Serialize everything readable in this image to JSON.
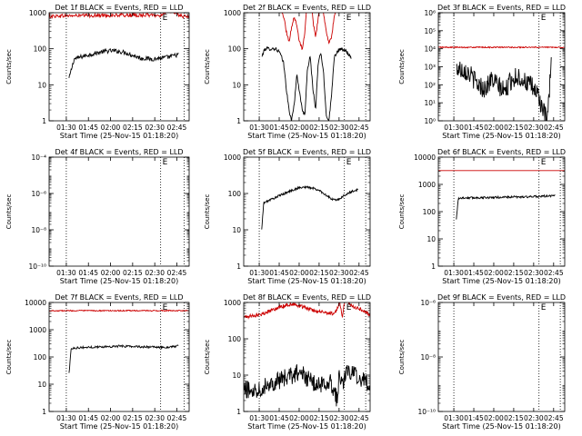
{
  "figure": {
    "x_tick_labels": [
      "01:30",
      "01:45",
      "02:00",
      "02:15",
      "02:30",
      "02:45"
    ],
    "x_axis_label": "Start Time (25-Nov-15 01:18:20)",
    "y_axis_label": "Counts/sec",
    "colors": {
      "events": "#000000",
      "lld": "#cc0000",
      "axes": "#000000",
      "background": "#ffffff"
    }
  },
  "chart_data": [
    {
      "type": "line",
      "title": "Det 1f BLACK = Events, RED = LLD",
      "xlabel": "Start Time (25-Nov-15 01:18:20)",
      "ylabel": "Counts/sec",
      "yscale": "log",
      "ylim": [
        1,
        1000
      ],
      "y_tick_labels": [
        "1",
        "10",
        "100",
        "1000"
      ],
      "x_range_minutes_after_01:18:20": [
        0,
        95
      ],
      "marker_times": [
        "01:30",
        "02:34",
        "02:50"
      ],
      "series": [
        {
          "name": "Events",
          "color": "#000000",
          "x": [
            13.5,
            17,
            22,
            27,
            32,
            37,
            42,
            47,
            52,
            57,
            62,
            67,
            71,
            76,
            80,
            84,
            88
          ],
          "y": [
            15,
            52,
            60,
            68,
            76,
            84,
            88,
            85,
            78,
            65,
            55,
            53,
            52,
            55,
            58,
            63,
            70
          ],
          "noise": 0.06
        },
        {
          "name": "LLD",
          "color": "#cc0000",
          "x": [
            0,
            10,
            20,
            30,
            40,
            50,
            60,
            70,
            75,
            80,
            85,
            90,
            95
          ],
          "y": [
            800,
            820,
            830,
            840,
            840,
            850,
            850,
            860,
            820,
            1150,
            980,
            800,
            760
          ],
          "noise": 0.05
        }
      ]
    },
    {
      "type": "line",
      "title": "Det 2f BLACK = Events, RED = LLD",
      "xlabel": "Start Time (25-Nov-15 01:18:20)",
      "ylabel": "Counts/sec",
      "yscale": "log",
      "ylim": [
        1,
        1000
      ],
      "y_tick_labels": [
        "1",
        "10",
        "100",
        "1000"
      ],
      "x_range_minutes_after_01:18:20": [
        0,
        95
      ],
      "marker_times": [
        "01:30",
        "02:34",
        "02:50"
      ],
      "series": [
        {
          "name": "Events",
          "color": "#000000",
          "x": [
            13.5,
            16,
            20,
            24,
            27,
            30,
            32,
            34,
            36,
            38,
            40,
            42,
            44,
            46,
            48,
            50,
            52,
            54,
            56,
            58,
            60,
            62,
            64,
            66,
            68,
            70,
            72,
            75,
            78,
            81
          ],
          "y": [
            60,
            100,
            100,
            100,
            80,
            40,
            8,
            2,
            1,
            3,
            20,
            6,
            2,
            1.5,
            30,
            60,
            8,
            2,
            40,
            80,
            20,
            1.5,
            1,
            5,
            60,
            80,
            100,
            90,
            80,
            50
          ],
          "noise": 0.05
        },
        {
          "name": "LLD",
          "color": "#cc0000",
          "x": [
            0,
            10,
            20,
            25,
            28,
            30,
            32,
            34,
            36,
            38,
            40,
            42,
            44,
            46,
            48,
            50,
            52,
            54,
            56,
            58,
            60,
            62,
            64,
            66,
            68,
            70,
            72,
            75,
            80,
            85,
            90,
            95
          ],
          "y": [
            1300,
            1300,
            1300,
            1300,
            1200,
            800,
            300,
            150,
            400,
            800,
            400,
            150,
            100,
            300,
            3500,
            5000,
            600,
            200,
            700,
            2000,
            900,
            300,
            150,
            200,
            800,
            1200,
            1300,
            1300,
            1300,
            1300,
            1300,
            1300
          ],
          "noise": 0.04
        }
      ]
    },
    {
      "type": "line",
      "title": "Det 3f BLACK = Events, RED = LLD",
      "xlabel": "Start Time (25-Nov-15 01:18:20)",
      "ylabel": "Counts/sec",
      "yscale": "log",
      "ylim": [
        1,
        1000000
      ],
      "y_tick_labels": [
        "10⁰",
        "10¹",
        "10²",
        "10³",
        "10⁴",
        "10⁵",
        "10⁶"
      ],
      "x_range_minutes_after_01:18:20": [
        0,
        95
      ],
      "marker_times": [
        "01:30",
        "02:34",
        "02:50"
      ],
      "series": [
        {
          "name": "Events",
          "color": "#000000",
          "x": [
            13.5,
            20,
            25,
            30,
            35,
            40,
            45,
            50,
            55,
            60,
            65,
            70,
            75,
            78,
            80,
            82,
            85
          ],
          "y": [
            800,
            700,
            300,
            100,
            60,
            200,
            90,
            40,
            200,
            300,
            150,
            80,
            30,
            5,
            2,
            1,
            2000
          ],
          "noise": 0.55
        },
        {
          "name": "LLD",
          "color": "#cc0000",
          "x": [
            0,
            20,
            40,
            60,
            80,
            95
          ],
          "y": [
            12000,
            12000,
            12000,
            12000,
            12000,
            12000
          ],
          "noise": 0.03
        }
      ]
    },
    {
      "type": "line",
      "title": "Det 4f BLACK = Events, RED = LLD",
      "xlabel": "Start Time (25-Nov-15 01:18:20)",
      "ylabel": "Counts/sec",
      "yscale": "log",
      "ylim": [
        1e-10,
        0.0001
      ],
      "y_tick_labels": [
        "10⁻¹⁰",
        "10⁻⁸",
        "10⁻⁶",
        "10⁻⁴"
      ],
      "x_range_minutes_after_01:18:20": [
        0,
        95
      ],
      "marker_times": [
        "01:30",
        "02:34",
        "02:50"
      ],
      "series": []
    },
    {
      "type": "line",
      "title": "Det 5f BLACK = Events, RED = LLD",
      "xlabel": "Start Time (25-Nov-15 01:18:20)",
      "ylabel": "Counts/sec",
      "yscale": "log",
      "ylim": [
        1,
        1000
      ],
      "y_tick_labels": [
        "1",
        "10",
        "100",
        "1000"
      ],
      "x_range_minutes_after_01:18:20": [
        0,
        95
      ],
      "marker_times": [
        "01:30",
        "02:34",
        "02:50"
      ],
      "series": [
        {
          "name": "Events",
          "color": "#000000",
          "x": [
            13.5,
            15,
            18,
            22,
            27,
            32,
            37,
            42,
            47,
            52,
            57,
            62,
            66,
            70,
            74,
            78,
            82,
            86
          ],
          "y": [
            10,
            55,
            62,
            72,
            88,
            105,
            125,
            145,
            150,
            140,
            120,
            90,
            70,
            65,
            80,
            100,
            115,
            130
          ],
          "noise": 0.03
        }
      ]
    },
    {
      "type": "line",
      "title": "Det 6f BLACK = Events, RED = LLD",
      "xlabel": "Start Time (25-Nov-15 01:18:20)",
      "ylabel": "Counts/sec",
      "yscale": "log",
      "ylim": [
        1,
        10000
      ],
      "y_tick_labels": [
        "1",
        "10",
        "100",
        "1000",
        "10000"
      ],
      "x_range_minutes_after_01:18:20": [
        0,
        95
      ],
      "marker_times": [
        "01:30",
        "02:34",
        "02:50"
      ],
      "series": [
        {
          "name": "Events",
          "color": "#000000",
          "x": [
            13.5,
            15,
            20,
            30,
            40,
            50,
            60,
            70,
            75,
            80,
            85,
            88
          ],
          "y": [
            50,
            310,
            320,
            325,
            330,
            340,
            345,
            350,
            360,
            370,
            380,
            390
          ],
          "noise": 0.04
        },
        {
          "name": "LLD",
          "color": "#cc0000",
          "x": [
            0,
            20,
            40,
            60,
            80,
            95
          ],
          "y": [
            3200,
            3200,
            3200,
            3200,
            3200,
            3200
          ],
          "noise": 0.0
        }
      ]
    },
    {
      "type": "line",
      "title": "Det 7f BLACK = Events, RED = LLD",
      "xlabel": "Start Time (25-Nov-15 01:18:20)",
      "ylabel": "Counts/sec",
      "yscale": "log",
      "ylim": [
        1,
        10000
      ],
      "y_tick_labels": [
        "1",
        "10",
        "100",
        "1000",
        "10000"
      ],
      "x_range_minutes_after_01:18:20": [
        0,
        95
      ],
      "marker_times": [
        "01:30",
        "02:34",
        "02:50"
      ],
      "series": [
        {
          "name": "Events",
          "color": "#000000",
          "x": [
            13.5,
            15,
            20,
            30,
            40,
            50,
            60,
            70,
            75,
            80,
            85,
            88
          ],
          "y": [
            25,
            210,
            220,
            230,
            240,
            250,
            240,
            230,
            225,
            230,
            240,
            250
          ],
          "noise": 0.04
        },
        {
          "name": "LLD",
          "color": "#cc0000",
          "x": [
            0,
            20,
            40,
            60,
            80,
            95
          ],
          "y": [
            5000,
            5000,
            5000,
            5000,
            5000,
            5000
          ],
          "noise": 0.02
        }
      ]
    },
    {
      "type": "line",
      "title": "Det 8f BLACK = Events, RED = LLD",
      "xlabel": "Start Time (25-Nov-15 01:18:20)",
      "ylabel": "Counts/sec",
      "yscale": "log",
      "ylim": [
        1,
        1000
      ],
      "y_tick_labels": [
        "1",
        "10",
        "100",
        "1000"
      ],
      "x_range_minutes_after_01:18:20": [
        0,
        95
      ],
      "marker_times": [
        "01:30",
        "02:34",
        "02:50"
      ],
      "series": [
        {
          "name": "Events",
          "color": "#000000",
          "x": [
            0,
            5,
            10,
            15,
            20,
            25,
            30,
            35,
            40,
            45,
            50,
            55,
            60,
            65,
            68,
            70,
            72,
            75,
            78,
            80,
            85,
            90,
            95
          ],
          "y": [
            4,
            4,
            4,
            5,
            6,
            7,
            8,
            9,
            12,
            10,
            7,
            5,
            6,
            7,
            4,
            2,
            12,
            6,
            15,
            12,
            9,
            8,
            5
          ],
          "noise": 0.25
        },
        {
          "name": "LLD",
          "color": "#cc0000",
          "x": [
            0,
            5,
            10,
            15,
            20,
            25,
            30,
            35,
            40,
            45,
            50,
            55,
            60,
            65,
            68,
            70,
            72,
            74,
            76,
            78,
            80,
            85,
            90,
            95
          ],
          "y": [
            400,
            420,
            450,
            500,
            600,
            700,
            800,
            900,
            850,
            750,
            650,
            550,
            550,
            500,
            480,
            600,
            1100,
            400,
            1150,
            1100,
            900,
            700,
            600,
            450
          ],
          "noise": 0.05
        }
      ]
    },
    {
      "type": "line",
      "title": "Det 9f BLACK = Events, RED = LLD",
      "xlabel": "Start Time (25-Nov-15 01:18:20)",
      "ylabel": "Counts/sec",
      "yscale": "log",
      "ylim": [
        1e-10,
        1e-06
      ],
      "y_tick_labels": [
        "10⁻¹⁰",
        "10⁻⁸",
        "10⁻⁶"
      ],
      "x_range_minutes_after_01:18:20": [
        0,
        95
      ],
      "marker_times": [
        "01:30",
        "02:34",
        "02:50"
      ],
      "series": []
    }
  ]
}
